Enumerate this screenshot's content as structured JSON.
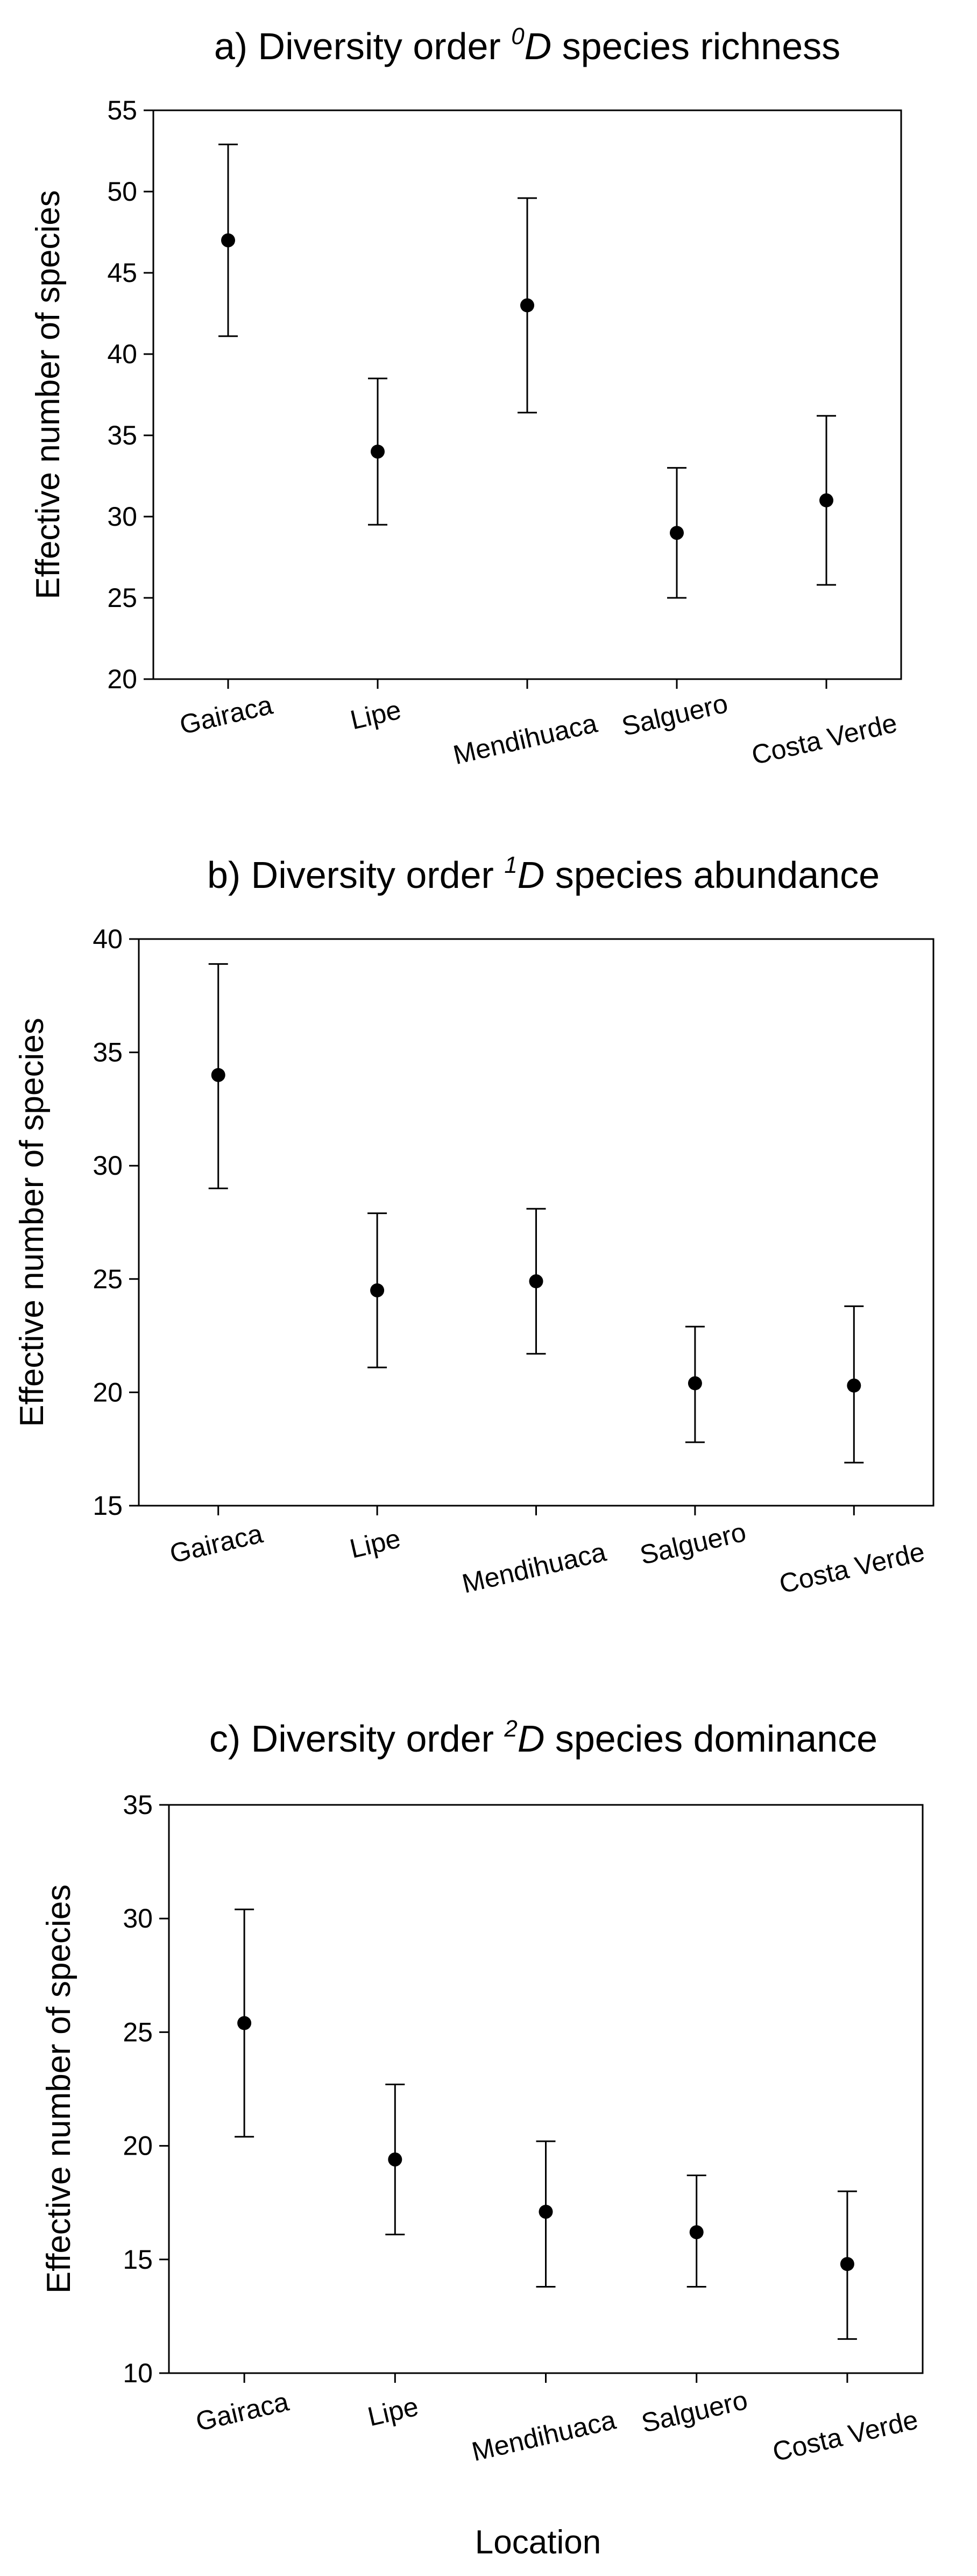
{
  "chart_data": [
    {
      "type": "errorbar",
      "title_prefix": "a) Diversity order ",
      "title_superscript": "0",
      "title_italic": "D",
      "title_suffix": " species richness",
      "ylabel": "Effective number of species",
      "xlabel": "",
      "ylim": [
        20,
        55
      ],
      "yticks": [
        20,
        25,
        30,
        35,
        40,
        45,
        50,
        55
      ],
      "categories": [
        "Gairaca",
        "Lipe",
        "Mendihuaca",
        "Salguero",
        "Costa Verde"
      ],
      "values": [
        47,
        34,
        43,
        29,
        31
      ],
      "lower": [
        41.1,
        29.5,
        36.4,
        25.0,
        25.8
      ],
      "upper": [
        52.9,
        38.5,
        49.6,
        33.0,
        36.2
      ]
    },
    {
      "type": "errorbar",
      "title_prefix": "b) Diversity order ",
      "title_superscript": "1",
      "title_italic": "D",
      "title_suffix": " species abundance",
      "ylabel": "Effective number of species",
      "xlabel": "",
      "ylim": [
        15,
        40
      ],
      "yticks": [
        15,
        20,
        25,
        30,
        35,
        40
      ],
      "categories": [
        "Gairaca",
        "Lipe",
        "Mendihuaca",
        "Salguero",
        "Costa Verde"
      ],
      "values": [
        34,
        24.5,
        24.9,
        20.4,
        20.3
      ],
      "lower": [
        29.0,
        21.1,
        21.7,
        17.8,
        16.9
      ],
      "upper": [
        38.9,
        27.9,
        28.1,
        22.9,
        23.8
      ]
    },
    {
      "type": "errorbar",
      "title_prefix": "c) Diversity order ",
      "title_superscript": "2",
      "title_italic": "D",
      "title_suffix": " species dominance",
      "ylabel": "Effective number of species",
      "xlabel": "Location",
      "ylim": [
        10,
        35
      ],
      "yticks": [
        10,
        15,
        20,
        25,
        30,
        35
      ],
      "categories": [
        "Gairaca",
        "Lipe",
        "Mendihuaca",
        "Salguero",
        "Costa Verde"
      ],
      "values": [
        25.4,
        19.4,
        17.1,
        16.2,
        14.8
      ],
      "lower": [
        20.4,
        16.1,
        13.8,
        13.8,
        11.5
      ],
      "upper": [
        30.4,
        22.7,
        20.2,
        18.7,
        18.0
      ]
    }
  ]
}
